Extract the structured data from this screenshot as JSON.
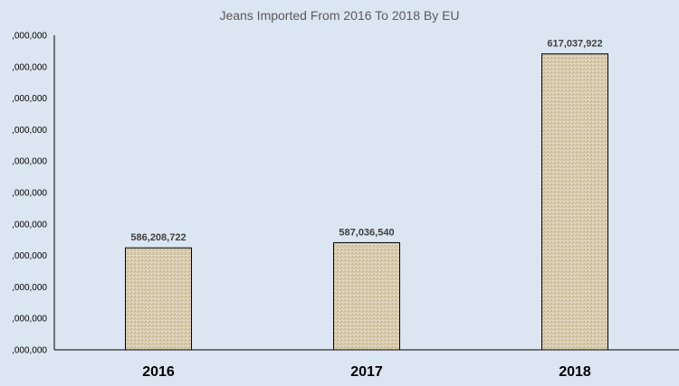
{
  "chart_data": {
    "type": "bar",
    "title": "Jeans Imported From 2016 To 2018 By EU",
    "categories": [
      "2016",
      "2017",
      "2018"
    ],
    "values": [
      586208722,
      587036540,
      617037922
    ],
    "value_labels": [
      "586,208,722",
      "587,036,540",
      "617,037,922"
    ],
    "y_tick_labels": [
      ",000,000",
      ",000,000",
      ",000,000",
      ",000,000",
      ",000,000",
      ",000,000",
      ",000,000",
      ",000,000",
      ",000,000",
      ",000,000",
      ",000,000"
    ],
    "ylim": [
      570000000,
      620000000
    ],
    "xlabel": "",
    "ylabel": "",
    "grid": false,
    "legend": "none",
    "colors": {
      "background": "#dce6f2",
      "bar_fill": "#d9ccb0",
      "bar_stroke": "#000000"
    }
  }
}
